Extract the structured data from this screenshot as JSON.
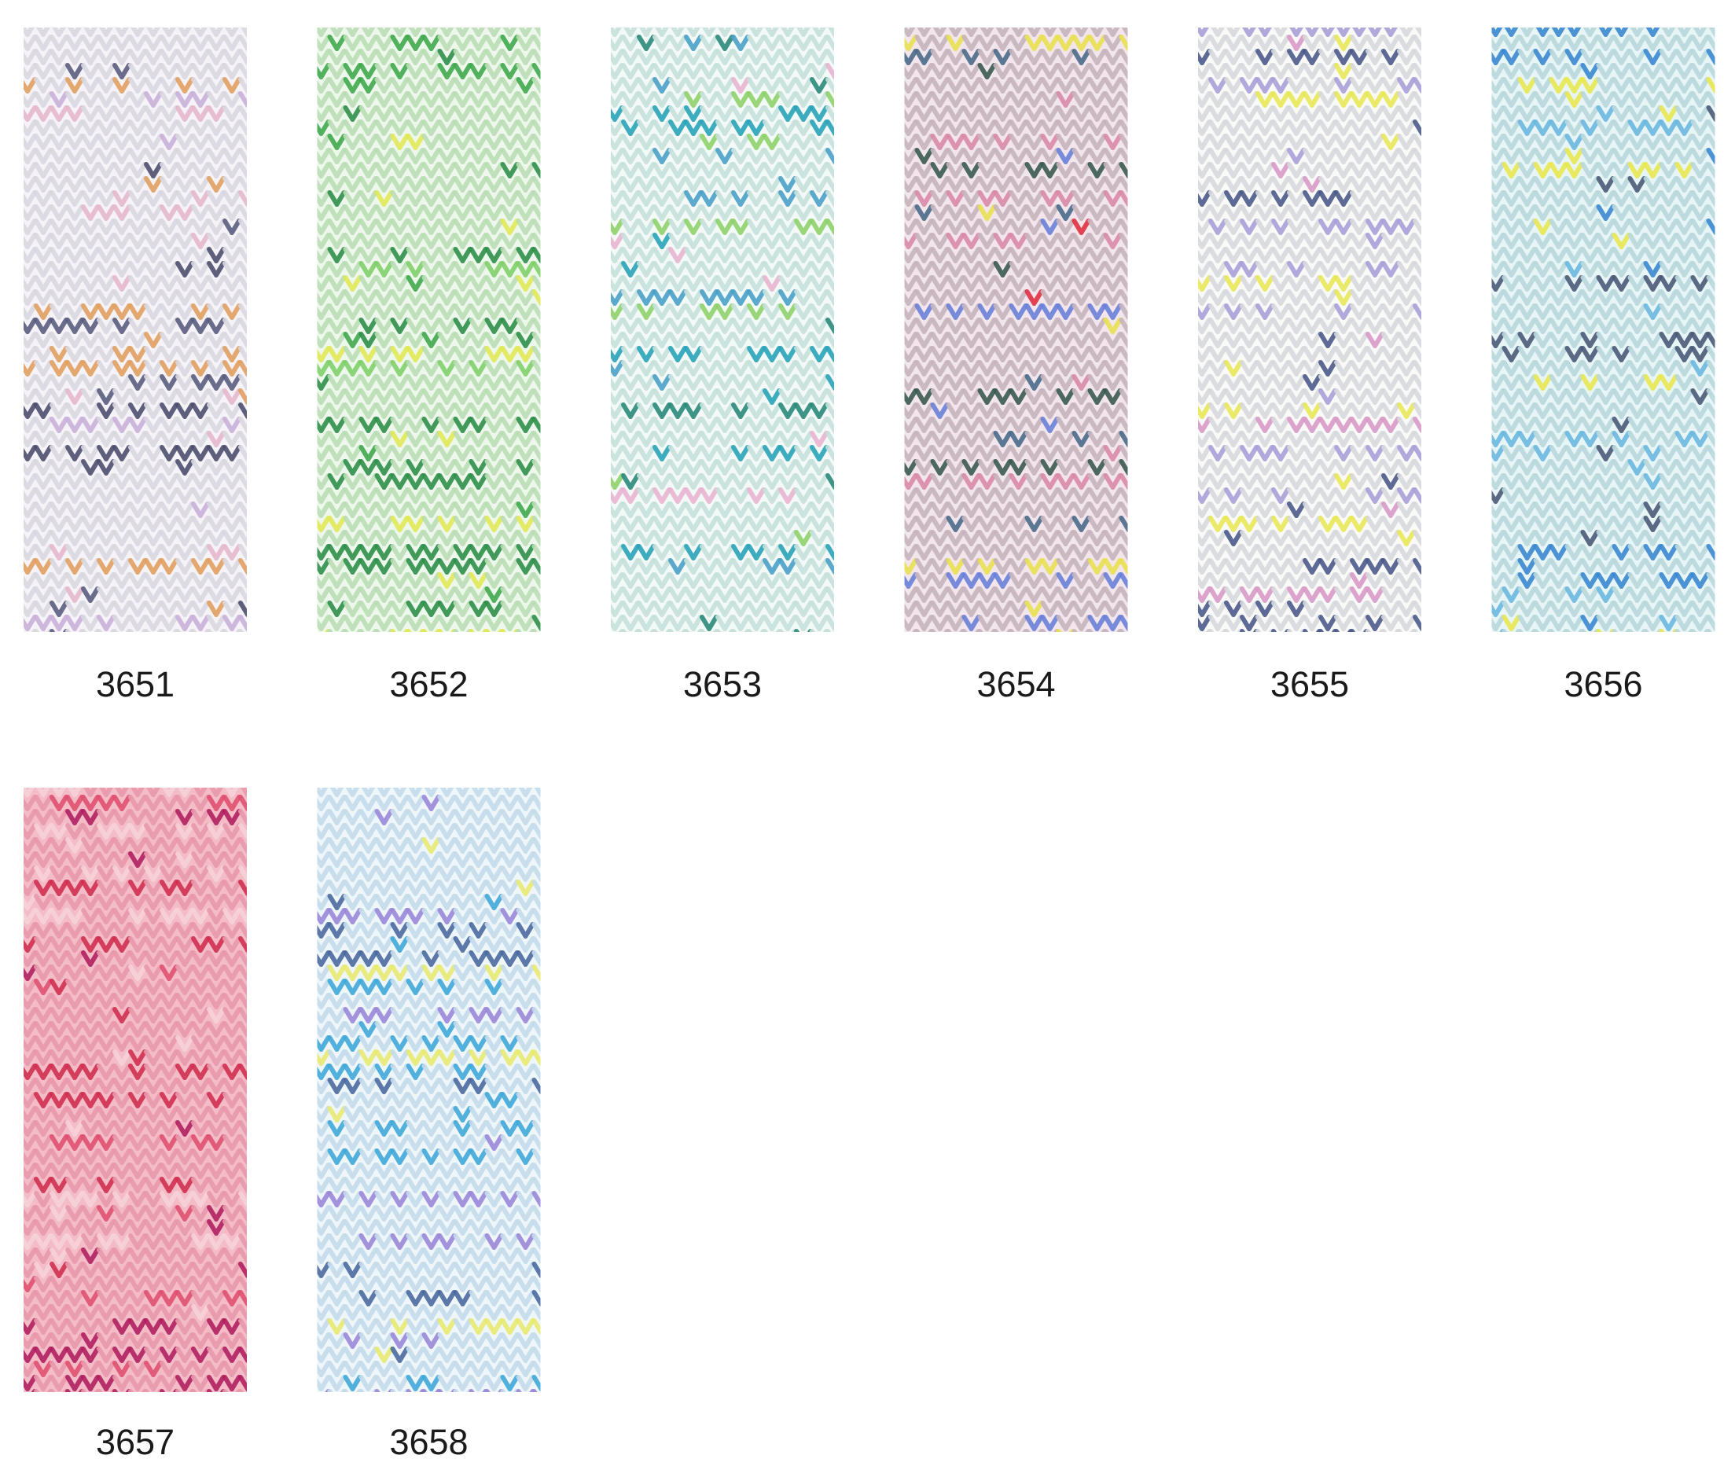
{
  "swatches": [
    {
      "label": "3651"
    },
    {
      "label": "3652"
    },
    {
      "label": "3653"
    },
    {
      "label": "3654"
    },
    {
      "label": "3655"
    },
    {
      "label": "3656"
    },
    {
      "label": "3657"
    },
    {
      "label": "3658"
    }
  ]
}
